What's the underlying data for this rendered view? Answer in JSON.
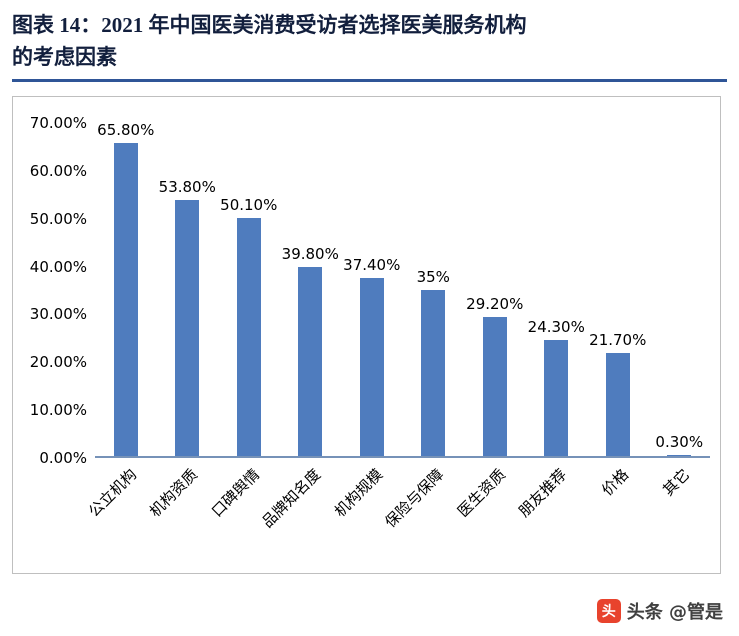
{
  "header": {
    "title_line1": "图表 14：2021 年中国医美消费受访者选择医美服务机构",
    "title_line2": "的考虑因素"
  },
  "colors": {
    "bar": "#4f7cbe",
    "title": "#121f3d",
    "underline": "#2f5597",
    "axis": "#7692b8"
  },
  "chart_data": {
    "type": "bar",
    "title": "2021 年中国医美消费受访者选择医美服务机构的考虑因素",
    "categories": [
      "公立机构",
      "机构资质",
      "口碑舆情",
      "品牌知名度",
      "机构规模",
      "保险与保障",
      "医生资质",
      "朋友推荐",
      "价格",
      "其它"
    ],
    "values": [
      65.8,
      53.8,
      50.1,
      39.8,
      37.4,
      35,
      29.2,
      24.3,
      21.7,
      0.3
    ],
    "value_labels": [
      "65.80%",
      "53.80%",
      "50.10%",
      "39.80%",
      "37.40%",
      "35%",
      "29.20%",
      "24.30%",
      "21.70%",
      "0.30%"
    ],
    "y_ticks": [
      "70.00%",
      "60.00%",
      "50.00%",
      "40.00%",
      "30.00%",
      "20.00%",
      "10.00%",
      "0.00%"
    ],
    "y_tick_values": [
      70,
      60,
      50,
      40,
      30,
      20,
      10,
      0
    ],
    "ylim": [
      0,
      70
    ],
    "xlabel": "",
    "ylabel": "",
    "grid": false,
    "legend": false
  },
  "watermark": {
    "icon_glyph": "头",
    "text": "头条 @管是"
  }
}
